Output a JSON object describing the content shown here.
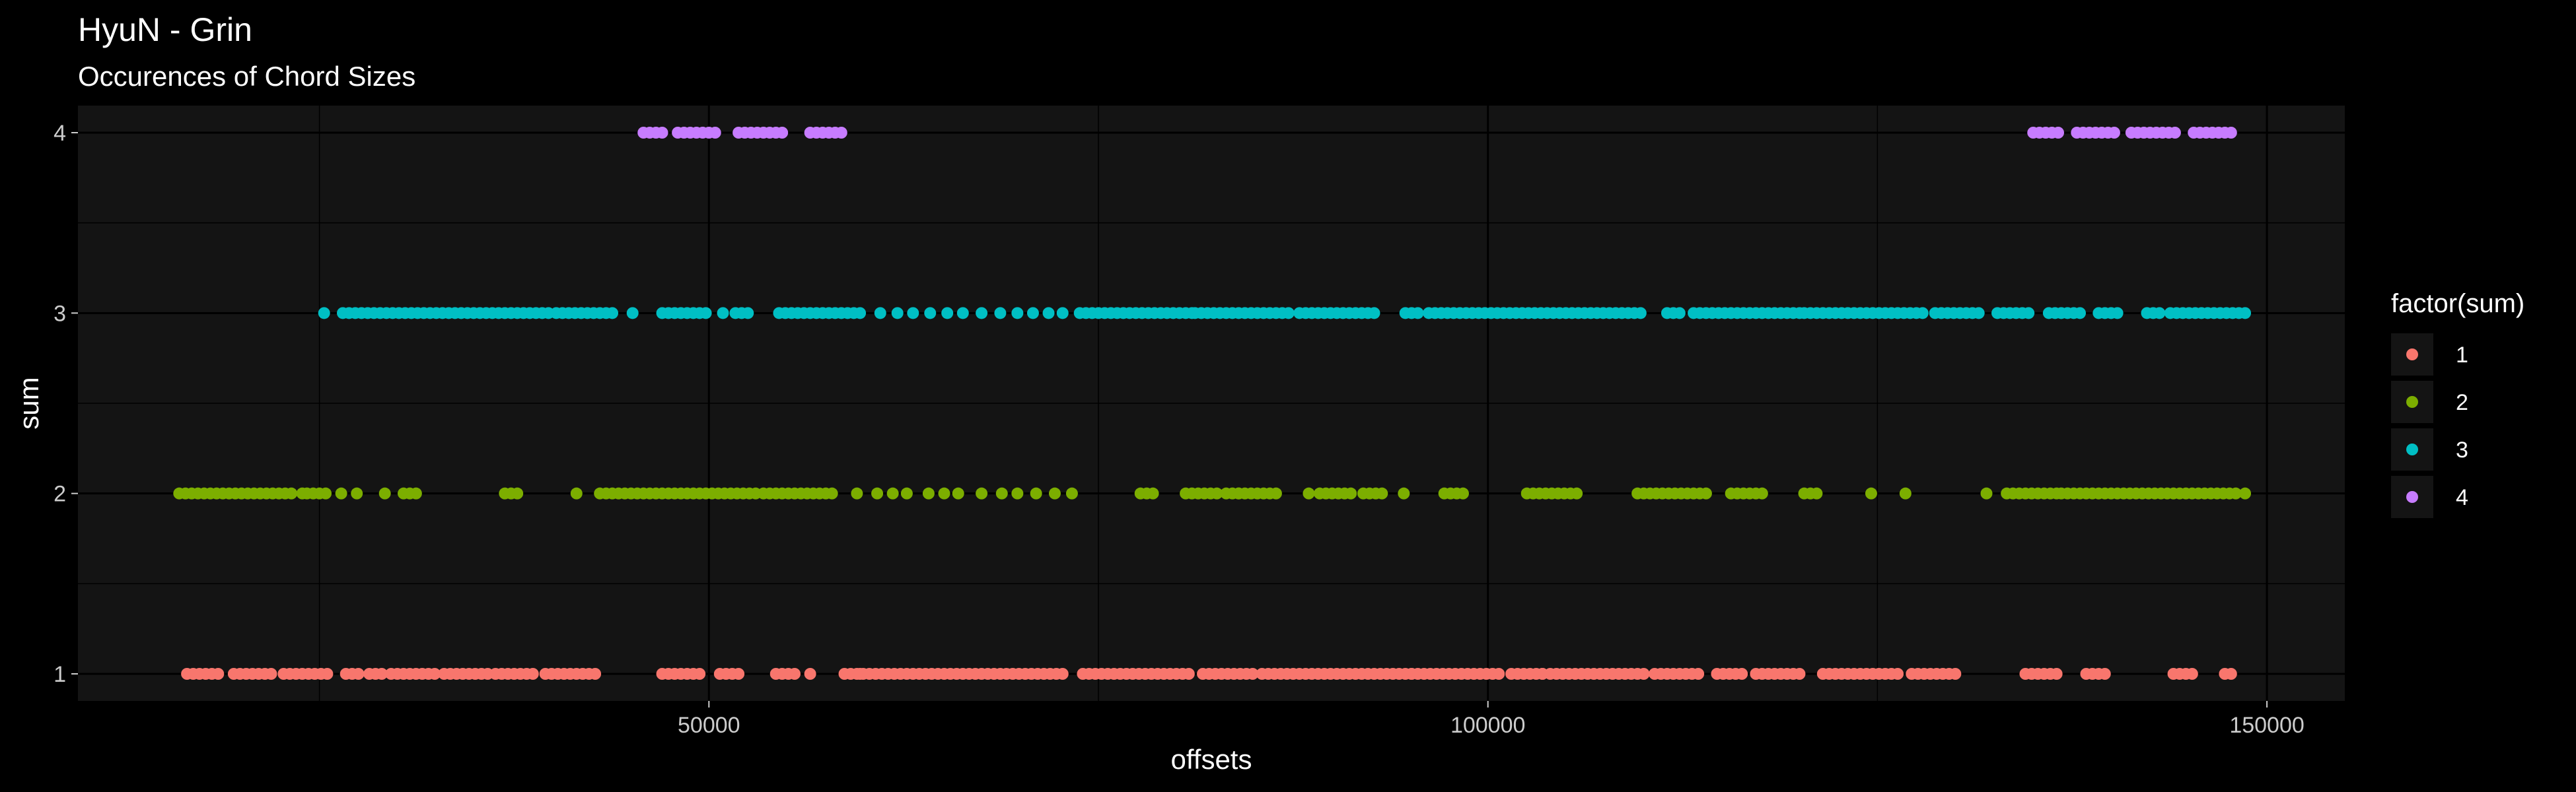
{
  "chart_data": {
    "type": "scatter",
    "title": "HyuN - Grin",
    "subtitle": "Occurences of Chord Sizes",
    "xlabel": "offsets",
    "ylabel": "sum",
    "xlim": [
      9500,
      155000
    ],
    "ylim": [
      0.85,
      4.15
    ],
    "x_ticks": [
      50000,
      100000,
      150000
    ],
    "x_tick_labels": [
      "50000",
      "100000",
      "150000"
    ],
    "y_ticks": [
      1,
      2,
      3,
      4
    ],
    "y_tick_labels": [
      "1",
      "2",
      "3",
      "4"
    ],
    "grid": true,
    "panel_background": "#141414",
    "grid_color": "#000000",
    "legend": {
      "title": "factor(sum)",
      "placement": "right",
      "entries": [
        {
          "label": "1",
          "color": "#F8766D"
        },
        {
          "label": "2",
          "color": "#7CAE00"
        },
        {
          "label": "3",
          "color": "#00BFC4"
        },
        {
          "label": "4",
          "color": "#C77CFF"
        }
      ]
    },
    "series": [
      {
        "name": "1",
        "color": "#F8766D",
        "y": 1,
        "ranges": [
          [
            16500,
            18500
          ],
          [
            19500,
            22000
          ],
          [
            22700,
            25700
          ],
          [
            26700,
            27800
          ],
          [
            28200,
            29200
          ],
          [
            29600,
            32500
          ],
          [
            33000,
            36000
          ],
          [
            36300,
            39000
          ],
          [
            39500,
            43000
          ],
          [
            47000,
            49500
          ],
          [
            50700,
            51900
          ],
          [
            54300,
            55800
          ],
          [
            58700,
            73000
          ],
          [
            74000,
            81000
          ],
          [
            81700,
            84800
          ],
          [
            85500,
            101000
          ],
          [
            101500,
            103500
          ],
          [
            104000,
            110000
          ],
          [
            110700,
            113800
          ],
          [
            114700,
            116500
          ],
          [
            117200,
            120000
          ],
          [
            121500,
            126500
          ],
          [
            127200,
            130300
          ],
          [
            134500,
            136500
          ],
          [
            138400,
            139600
          ],
          [
            144000,
            145200
          ],
          [
            147300,
            148000
          ]
        ],
        "points": [
          56500,
          59700,
          84900,
          95100,
          103500
        ]
      },
      {
        "name": "2",
        "color": "#7CAE00",
        "y": 2,
        "ranges": [
          [
            16000,
            18400
          ],
          [
            18800,
            23500
          ],
          [
            24200,
            25700
          ],
          [
            30400,
            31200
          ],
          [
            36900,
            37900
          ],
          [
            43000,
            53000
          ],
          [
            53500,
            58000
          ],
          [
            77700,
            78500
          ],
          [
            80600,
            82900
          ],
          [
            83200,
            86500
          ],
          [
            89200,
            91500
          ],
          [
            92000,
            93300
          ],
          [
            94600,
            94900
          ],
          [
            97200,
            98700
          ],
          [
            102500,
            106000
          ],
          [
            109600,
            114000
          ],
          [
            115600,
            117700
          ],
          [
            120300,
            121300
          ],
          [
            133300,
            136500
          ],
          [
            136800,
            140900
          ],
          [
            141200,
            148000
          ]
        ],
        "points": [
          23900,
          26400,
          27400,
          29200,
          41500,
          59500,
          60800,
          61800,
          62700,
          64100,
          65100,
          66000,
          67500,
          68800,
          69800,
          71000,
          72200,
          73300,
          84000,
          88500,
          124600,
          126800,
          132000,
          148600
        ]
      },
      {
        "name": "3",
        "color": "#00BFC4",
        "y": 3,
        "ranges": [
          [
            26500,
            40000
          ],
          [
            40200,
            44000
          ],
          [
            47000,
            49800
          ],
          [
            51700,
            52600
          ],
          [
            54500,
            60000
          ],
          [
            73800,
            81000
          ],
          [
            81200,
            87500
          ],
          [
            87900,
            93000
          ],
          [
            94700,
            95700
          ],
          [
            96200,
            110000
          ],
          [
            111500,
            112300
          ],
          [
            113200,
            120000
          ],
          [
            120300,
            128000
          ],
          [
            128700,
            131500
          ],
          [
            132700,
            135000
          ],
          [
            136000,
            138000
          ],
          [
            139200,
            140500
          ],
          [
            142300,
            143400
          ],
          [
            143800,
            148700
          ]
        ],
        "points": [
          25300,
          45100,
          50900,
          61000,
          62100,
          63100,
          64200,
          65300,
          66300,
          67500,
          68700,
          69800,
          70800,
          71800,
          72700
        ]
      },
      {
        "name": "4",
        "color": "#C77CFF",
        "y": 4,
        "ranges": [
          [
            45800,
            47300
          ],
          [
            48000,
            50500
          ],
          [
            51900,
            55000
          ],
          [
            56500,
            58800
          ],
          [
            135000,
            136800
          ],
          [
            137800,
            140500
          ],
          [
            141300,
            144400
          ],
          [
            145300,
            147800
          ]
        ],
        "points": []
      }
    ]
  }
}
